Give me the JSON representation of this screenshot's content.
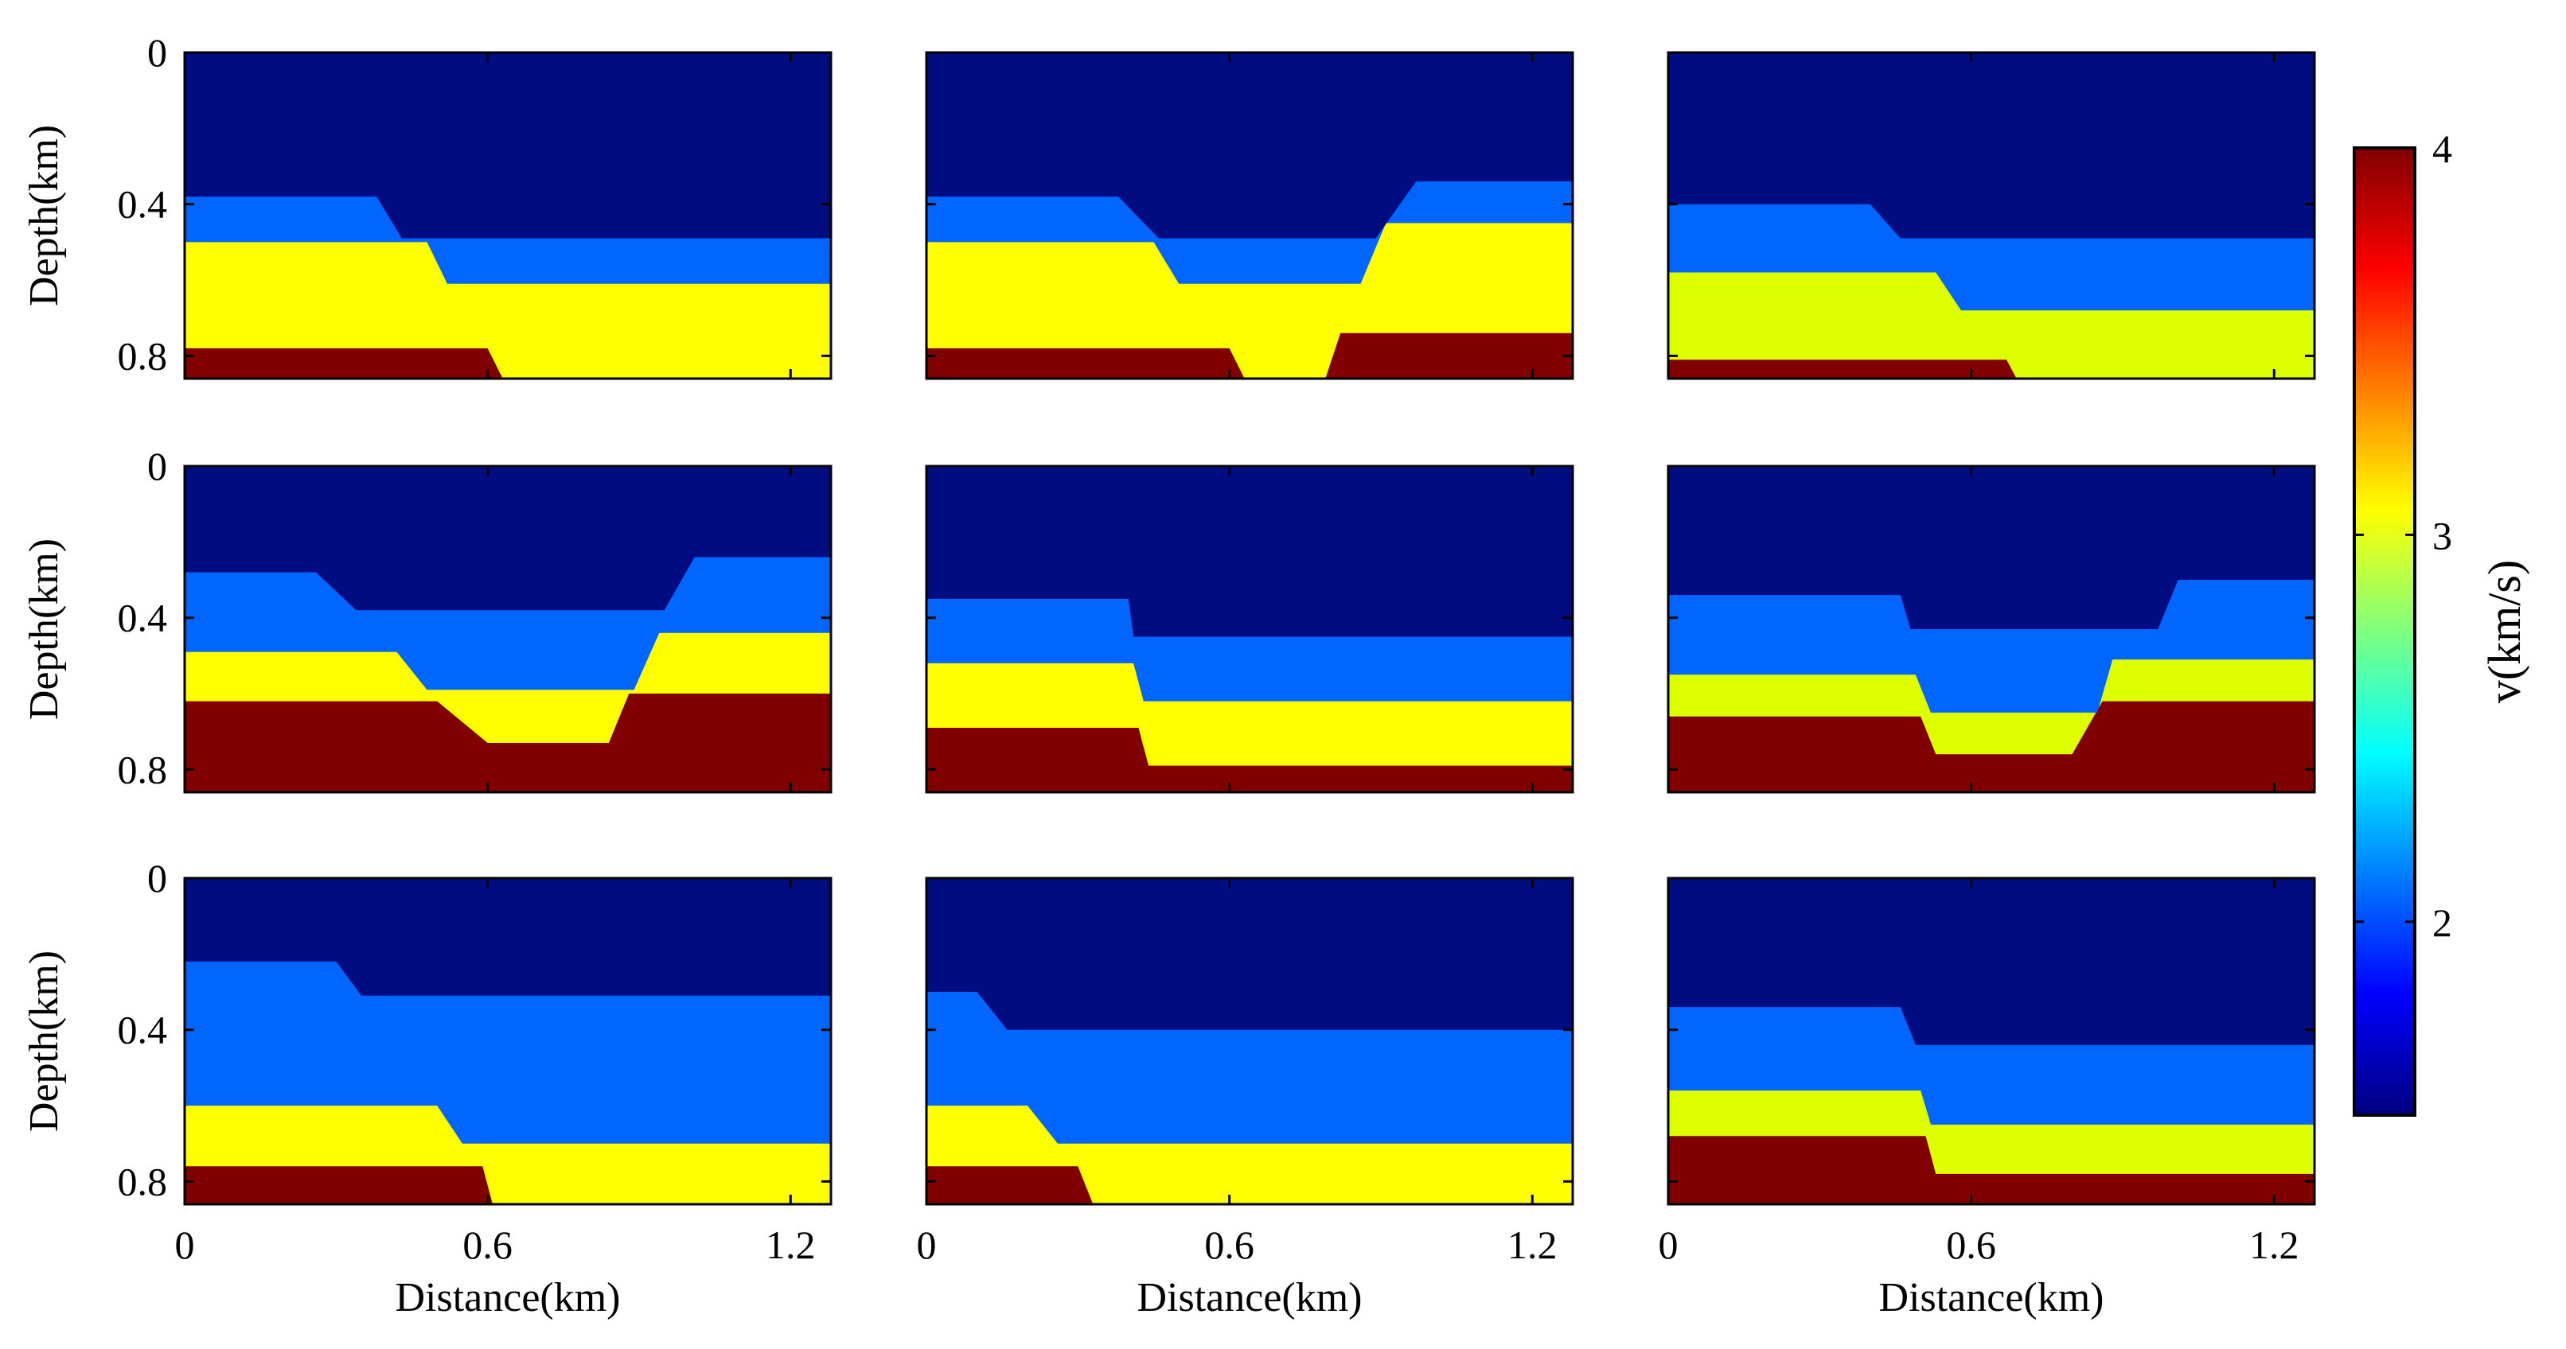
{
  "chart_data": {
    "type": "heatmap",
    "title": "",
    "grid": "3x3",
    "xlabel": "Distance(km)",
    "ylabel": "Depth(km)",
    "xlim": [
      0,
      1.28
    ],
    "ylim": [
      0,
      0.86
    ],
    "x_ticks": [
      0,
      0.6,
      1.2
    ],
    "x_tick_labels": [
      "0",
      "0.6",
      "1.2"
    ],
    "y_ticks": [
      0,
      0.4,
      0.8
    ],
    "y_tick_labels": [
      "0",
      "0.4",
      "0.8"
    ],
    "colorbar": {
      "label": "v(km/s)",
      "range": [
        1.5,
        4
      ],
      "ticks": [
        2,
        3,
        4
      ],
      "tick_labels": [
        "2",
        "3",
        "4"
      ],
      "colormap": "jet"
    },
    "layer_colors": {
      "water": "#000c80",
      "l2": "#0066ff",
      "l3_yellow": "#ffff00",
      "l3_lime": "#ddff00",
      "l4": "#800000"
    },
    "panels": [
      {
        "name": "panel-r1c1",
        "layers": [
          {
            "velocity": 1.5,
            "color": "#000c80",
            "base": [
              [
                0,
                0.38
              ],
              [
                0.38,
                0.38
              ],
              [
                0.43,
                0.49
              ],
              [
                1.28,
                0.49
              ]
            ]
          },
          {
            "velocity": 2.1,
            "color": "#0066ff",
            "base": [
              [
                0,
                0.5
              ],
              [
                0.48,
                0.5
              ],
              [
                0.52,
                0.61
              ],
              [
                1.28,
                0.61
              ]
            ]
          },
          {
            "velocity": 3.2,
            "color": "#ffff00",
            "base": [
              [
                0,
                0.78
              ],
              [
                0.6,
                0.78
              ],
              [
                0.63,
                0.86
              ],
              [
                1.28,
                0.86
              ]
            ]
          },
          {
            "velocity": 4.0,
            "color": "#800000",
            "base": [
              [
                0,
                0.86
              ],
              [
                1.28,
                0.86
              ]
            ]
          }
        ]
      },
      {
        "name": "panel-r1c2",
        "layers": [
          {
            "velocity": 1.5,
            "color": "#000c80",
            "base": [
              [
                0,
                0.38
              ],
              [
                0.38,
                0.38
              ],
              [
                0.46,
                0.49
              ],
              [
                0.89,
                0.49
              ],
              [
                0.97,
                0.34
              ],
              [
                1.28,
                0.34
              ]
            ]
          },
          {
            "velocity": 2.1,
            "color": "#0066ff",
            "base": [
              [
                0,
                0.5
              ],
              [
                0.45,
                0.5
              ],
              [
                0.5,
                0.61
              ],
              [
                0.86,
                0.61
              ],
              [
                0.91,
                0.45
              ],
              [
                1.28,
                0.45
              ]
            ]
          },
          {
            "velocity": 3.2,
            "color": "#ffff00",
            "base": [
              [
                0,
                0.78
              ],
              [
                0.6,
                0.78
              ],
              [
                0.63,
                0.86
              ],
              [
                0.79,
                0.86
              ],
              [
                0.82,
                0.74
              ],
              [
                1.28,
                0.74
              ]
            ]
          },
          {
            "velocity": 4.0,
            "color": "#800000",
            "base": [
              [
                0,
                0.86
              ],
              [
                1.28,
                0.86
              ]
            ]
          }
        ]
      },
      {
        "name": "panel-r1c3",
        "layers": [
          {
            "velocity": 1.5,
            "color": "#000c80",
            "base": [
              [
                0,
                0.4
              ],
              [
                0.4,
                0.4
              ],
              [
                0.46,
                0.49
              ],
              [
                1.28,
                0.49
              ]
            ]
          },
          {
            "velocity": 2.1,
            "color": "#0066ff",
            "base": [
              [
                0,
                0.58
              ],
              [
                0.53,
                0.58
              ],
              [
                0.58,
                0.68
              ],
              [
                1.28,
                0.68
              ]
            ]
          },
          {
            "velocity": 3.0,
            "color": "#ddff00",
            "base": [
              [
                0,
                0.81
              ],
              [
                0.67,
                0.81
              ],
              [
                0.69,
                0.86
              ],
              [
                1.28,
                0.86
              ]
            ]
          },
          {
            "velocity": 4.0,
            "color": "#800000",
            "base": [
              [
                0,
                0.86
              ],
              [
                1.28,
                0.86
              ]
            ]
          }
        ]
      },
      {
        "name": "panel-r2c1",
        "layers": [
          {
            "velocity": 1.5,
            "color": "#000c80",
            "base": [
              [
                0,
                0.28
              ],
              [
                0.26,
                0.28
              ],
              [
                0.34,
                0.38
              ],
              [
                0.95,
                0.38
              ],
              [
                1.01,
                0.24
              ],
              [
                1.28,
                0.24
              ]
            ]
          },
          {
            "velocity": 2.1,
            "color": "#0066ff",
            "base": [
              [
                0,
                0.49
              ],
              [
                0.42,
                0.49
              ],
              [
                0.48,
                0.59
              ],
              [
                0.89,
                0.59
              ],
              [
                0.94,
                0.44
              ],
              [
                1.28,
                0.44
              ]
            ]
          },
          {
            "velocity": 3.2,
            "color": "#ffff00",
            "base": [
              [
                0,
                0.62
              ],
              [
                0.5,
                0.62
              ],
              [
                0.6,
                0.73
              ],
              [
                0.84,
                0.73
              ],
              [
                0.88,
                0.6
              ],
              [
                1.28,
                0.6
              ]
            ]
          },
          {
            "velocity": 4.0,
            "color": "#800000",
            "base": [
              [
                0,
                0.86
              ],
              [
                1.28,
                0.86
              ]
            ]
          }
        ]
      },
      {
        "name": "panel-r2c2",
        "layers": [
          {
            "velocity": 1.5,
            "color": "#000c80",
            "base": [
              [
                0,
                0.35
              ],
              [
                0.4,
                0.35
              ],
              [
                0.41,
                0.45
              ],
              [
                1.28,
                0.45
              ]
            ]
          },
          {
            "velocity": 2.1,
            "color": "#0066ff",
            "base": [
              [
                0,
                0.52
              ],
              [
                0.41,
                0.52
              ],
              [
                0.43,
                0.62
              ],
              [
                1.28,
                0.62
              ]
            ]
          },
          {
            "velocity": 3.2,
            "color": "#ffff00",
            "base": [
              [
                0,
                0.69
              ],
              [
                0.42,
                0.69
              ],
              [
                0.44,
                0.79
              ],
              [
                1.28,
                0.79
              ]
            ]
          },
          {
            "velocity": 4.0,
            "color": "#800000",
            "base": [
              [
                0,
                0.86
              ],
              [
                1.28,
                0.86
              ]
            ]
          }
        ]
      },
      {
        "name": "panel-r2c3",
        "layers": [
          {
            "velocity": 1.5,
            "color": "#000c80",
            "base": [
              [
                0,
                0.34
              ],
              [
                0.46,
                0.34
              ],
              [
                0.48,
                0.43
              ],
              [
                0.97,
                0.43
              ],
              [
                1.01,
                0.3
              ],
              [
                1.28,
                0.3
              ]
            ]
          },
          {
            "velocity": 2.1,
            "color": "#0066ff",
            "base": [
              [
                0,
                0.55
              ],
              [
                0.49,
                0.55
              ],
              [
                0.52,
                0.65
              ],
              [
                0.85,
                0.65
              ],
              [
                0.88,
                0.51
              ],
              [
                1.28,
                0.51
              ]
            ]
          },
          {
            "velocity": 3.0,
            "color": "#ddff00",
            "base": [
              [
                0,
                0.66
              ],
              [
                0.5,
                0.66
              ],
              [
                0.53,
                0.76
              ],
              [
                0.8,
                0.76
              ],
              [
                0.86,
                0.62
              ],
              [
                1.28,
                0.62
              ]
            ]
          },
          {
            "velocity": 4.0,
            "color": "#800000",
            "base": [
              [
                0,
                0.86
              ],
              [
                1.28,
                0.86
              ]
            ]
          }
        ]
      },
      {
        "name": "panel-r3c1",
        "layers": [
          {
            "velocity": 1.5,
            "color": "#000c80",
            "base": [
              [
                0,
                0.22
              ],
              [
                0.3,
                0.22
              ],
              [
                0.35,
                0.31
              ],
              [
                1.28,
                0.31
              ]
            ]
          },
          {
            "velocity": 2.1,
            "color": "#0066ff",
            "base": [
              [
                0,
                0.6
              ],
              [
                0.5,
                0.6
              ],
              [
                0.55,
                0.7
              ],
              [
                1.28,
                0.7
              ]
            ]
          },
          {
            "velocity": 3.2,
            "color": "#ffff00",
            "base": [
              [
                0,
                0.76
              ],
              [
                0.59,
                0.76
              ],
              [
                0.61,
                0.86
              ],
              [
                1.28,
                0.86
              ]
            ]
          },
          {
            "velocity": 4.0,
            "color": "#800000",
            "base": [
              [
                0,
                0.86
              ],
              [
                1.28,
                0.86
              ]
            ]
          }
        ]
      },
      {
        "name": "panel-r3c2",
        "layers": [
          {
            "velocity": 1.5,
            "color": "#000c80",
            "base": [
              [
                0,
                0.3
              ],
              [
                0.1,
                0.3
              ],
              [
                0.16,
                0.4
              ],
              [
                1.28,
                0.4
              ]
            ]
          },
          {
            "velocity": 2.1,
            "color": "#0066ff",
            "base": [
              [
                0,
                0.6
              ],
              [
                0.2,
                0.6
              ],
              [
                0.26,
                0.7
              ],
              [
                1.28,
                0.7
              ]
            ]
          },
          {
            "velocity": 3.2,
            "color": "#ffff00",
            "base": [
              [
                0,
                0.76
              ],
              [
                0.3,
                0.76
              ],
              [
                0.33,
                0.86
              ],
              [
                1.28,
                0.86
              ]
            ]
          },
          {
            "velocity": 4.0,
            "color": "#800000",
            "base": [
              [
                0,
                0.86
              ],
              [
                1.28,
                0.86
              ]
            ]
          }
        ]
      },
      {
        "name": "panel-r3c3",
        "layers": [
          {
            "velocity": 1.5,
            "color": "#000c80",
            "base": [
              [
                0,
                0.34
              ],
              [
                0.46,
                0.34
              ],
              [
                0.49,
                0.44
              ],
              [
                1.28,
                0.44
              ]
            ]
          },
          {
            "velocity": 2.1,
            "color": "#0066ff",
            "base": [
              [
                0,
                0.56
              ],
              [
                0.5,
                0.56
              ],
              [
                0.52,
                0.65
              ],
              [
                1.28,
                0.65
              ]
            ]
          },
          {
            "velocity": 3.0,
            "color": "#ddff00",
            "base": [
              [
                0,
                0.68
              ],
              [
                0.51,
                0.68
              ],
              [
                0.53,
                0.78
              ],
              [
                1.28,
                0.78
              ]
            ]
          },
          {
            "velocity": 4.0,
            "color": "#800000",
            "base": [
              [
                0,
                0.86
              ],
              [
                1.28,
                0.86
              ]
            ]
          }
        ]
      }
    ]
  }
}
